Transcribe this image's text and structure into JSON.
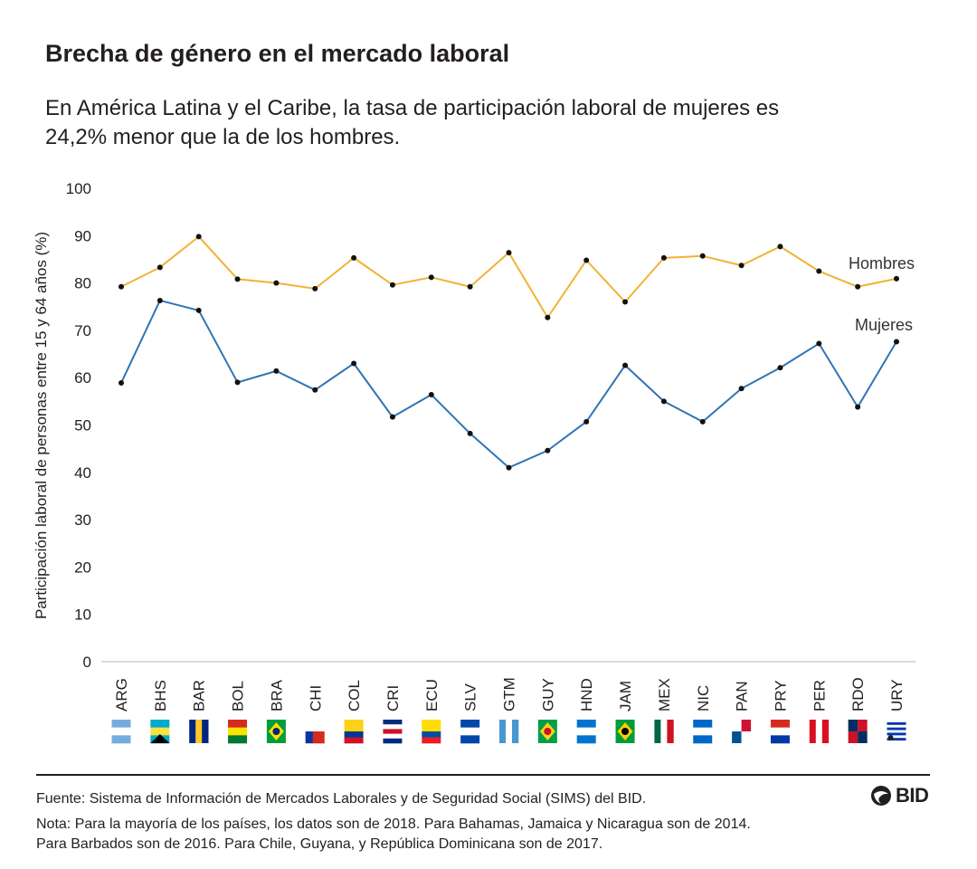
{
  "header": {
    "title": "Brecha de género en el mercado laboral",
    "subtitle": "En América Latina y el Caribe, la tasa de participación laboral de mujeres es 24,2% menor que la de los hombres."
  },
  "chart_data": {
    "type": "line",
    "ylabel": "Participación laboral de personas entre 15 y 64 años (%)",
    "xlabel": "",
    "ylim": [
      0,
      100
    ],
    "yticks": [
      0,
      10,
      20,
      30,
      40,
      50,
      60,
      70,
      80,
      90,
      100
    ],
    "categories": [
      "ARG",
      "BHS",
      "BAR",
      "BOL",
      "BRA",
      "CHI",
      "COL",
      "CRI",
      "ECU",
      "SLV",
      "GTM",
      "GUY",
      "HND",
      "JAM",
      "MEX",
      "NIC",
      "PAN",
      "PRY",
      "PER",
      "RDO",
      "URY"
    ],
    "series": [
      {
        "name": "Hombres",
        "color": "#f2b233",
        "values": [
          79.2,
          83.3,
          89.8,
          80.8,
          80.0,
          78.8,
          85.3,
          79.6,
          81.2,
          79.2,
          86.4,
          72.7,
          84.8,
          76.0,
          85.3,
          85.7,
          83.7,
          87.7,
          82.5,
          79.2,
          80.9
        ]
      },
      {
        "name": "Mujeres",
        "color": "#2f74b5",
        "values": [
          58.9,
          76.3,
          74.2,
          59.0,
          61.4,
          57.4,
          63.0,
          51.7,
          56.4,
          48.2,
          41.0,
          44.6,
          50.7,
          62.6,
          55.0,
          50.7,
          57.7,
          62.1,
          67.2,
          53.8,
          67.6
        ]
      }
    ],
    "grid": false,
    "legend": "inline labels at right end of each line",
    "flag_icons": [
      "argentina-flag",
      "bahamas-flag",
      "barbados-flag",
      "bolivia-flag",
      "brazil-flag",
      "chile-flag",
      "colombia-flag",
      "costa-rica-flag",
      "ecuador-flag",
      "el-salvador-flag",
      "guatemala-flag",
      "guyana-flag",
      "honduras-flag",
      "jamaica-flag",
      "mexico-flag",
      "nicaragua-flag",
      "panama-flag",
      "paraguay-flag",
      "peru-flag",
      "dominican-republic-flag",
      "uruguay-flag"
    ]
  },
  "footer": {
    "source_label": "Fuente:",
    "source_text": "Sistema de Información de Mercados Laborales y de Seguridad Social (SIMS) del BID.",
    "note_label": "Nota:",
    "note_line1": "Para la mayoría de los países, los datos son de 2018. Para Bahamas, Jamaica y Nicaragua son de 2014.",
    "note_line2": "Para Barbados son de 2016. Para Chile, Guyana, y República Dominicana son de 2017.",
    "logo_text": "BID"
  }
}
